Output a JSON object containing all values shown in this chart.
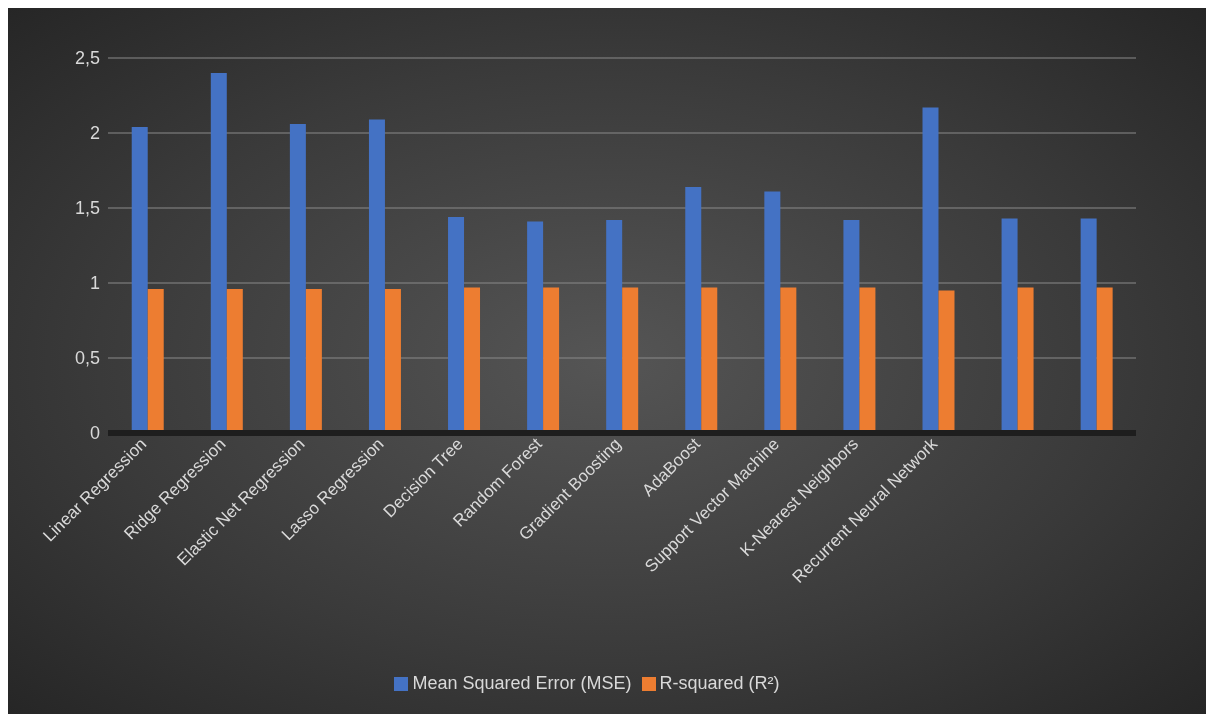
{
  "chart_data": {
    "type": "bar",
    "categories": [
      "Linear Regression",
      "Ridge Regression",
      "Elastic Net Regression",
      "Lasso Regression",
      "Decision Tree",
      "Random Forest",
      "Gradient Boosting",
      "AdaBoost",
      "Support Vector Machine",
      "K-Nearest Neighbors",
      "Recurrent Neural Network",
      null,
      null
    ],
    "series": [
      {
        "name": "Mean Squared Error (MSE)",
        "color": "#4472c4",
        "values": [
          2.04,
          2.4,
          2.06,
          2.09,
          1.44,
          1.41,
          1.42,
          1.64,
          1.61,
          1.42,
          2.17,
          1.43,
          1.43
        ]
      },
      {
        "name": "R-squared (R²)",
        "color": "#ed7d31",
        "values": [
          0.96,
          0.96,
          0.96,
          0.96,
          0.97,
          0.97,
          0.97,
          0.97,
          0.97,
          0.97,
          0.95,
          0.97,
          0.97
        ]
      }
    ],
    "ylim": [
      0,
      2.5
    ],
    "yticks": [
      0,
      {
        "value": 0.5,
        "label": "0,5"
      },
      1,
      {
        "value": 1.5,
        "label": "1,5"
      },
      2,
      {
        "value": 2.5,
        "label": "2,5"
      }
    ],
    "grid": "y",
    "legend": "bottom"
  }
}
